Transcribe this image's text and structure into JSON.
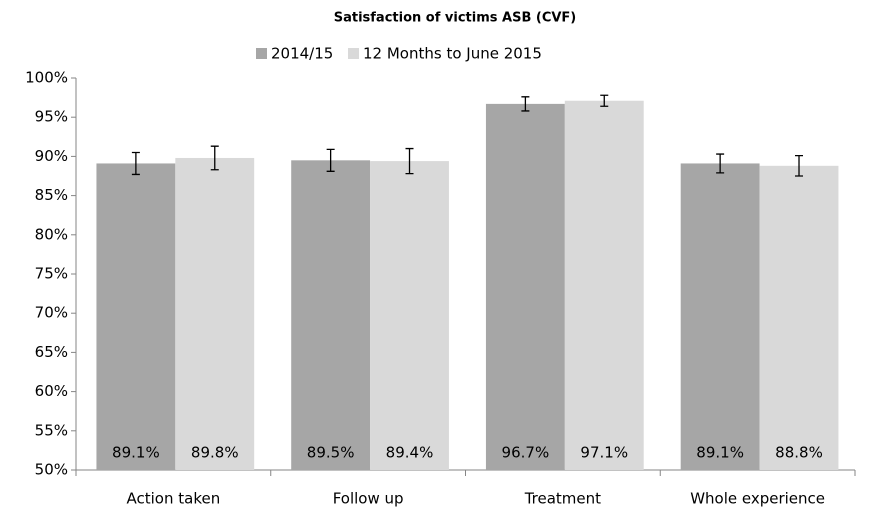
{
  "chart_data": {
    "type": "bar",
    "title": "Satisfaction  of victims ASB (CVF)",
    "categories": [
      "Action taken",
      "Follow up",
      "Treatment",
      "Whole experience"
    ],
    "series": [
      {
        "name": "2014/15",
        "color": "#a6a6a6",
        "values": [
          89.1,
          89.5,
          96.7,
          89.1
        ],
        "value_labels": [
          "89.1%",
          "89.5%",
          "96.7%",
          "89.1%"
        ],
        "errors": [
          1.4,
          1.4,
          0.9,
          1.2
        ]
      },
      {
        "name": "12 Months to June 2015",
        "color": "#d9d9d9",
        "values": [
          89.8,
          89.4,
          97.1,
          88.8
        ],
        "value_labels": [
          "89.8%",
          "89.4%",
          "97.1%",
          "88.8%"
        ],
        "errors": [
          1.5,
          1.6,
          0.7,
          1.3
        ]
      }
    ],
    "ylim": [
      50,
      100
    ],
    "yticks": [
      {
        "value": 50,
        "label": "50%"
      },
      {
        "value": 55,
        "label": "55%"
      },
      {
        "value": 60,
        "label": "60%"
      },
      {
        "value": 65,
        "label": "65%"
      },
      {
        "value": 70,
        "label": "70%"
      },
      {
        "value": 75,
        "label": "75%"
      },
      {
        "value": 80,
        "label": "80%"
      },
      {
        "value": 85,
        "label": "85%"
      },
      {
        "value": 90,
        "label": "90%"
      },
      {
        "value": 95,
        "label": "95%"
      },
      {
        "value": 100,
        "label": "100%"
      }
    ],
    "legend": "top",
    "grid": false
  }
}
